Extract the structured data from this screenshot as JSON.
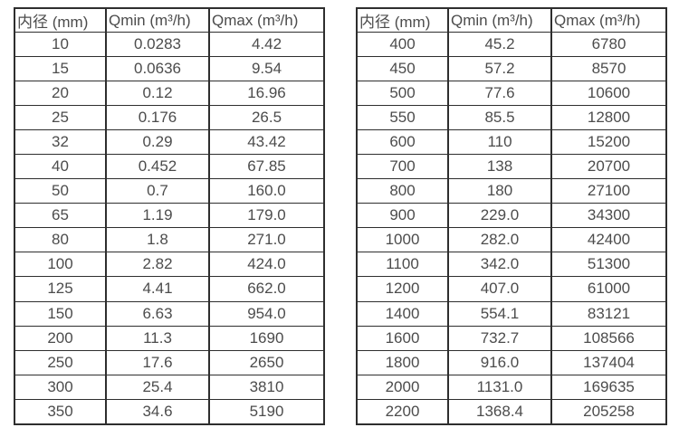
{
  "page": {
    "background": "#ffffff",
    "text_color": "#4c4c4c",
    "border_color": "#2e2e2e"
  },
  "chart_data": [
    {
      "type": "table",
      "columns": [
        "内径 (mm)",
        "Qmin (m³/h)",
        "Qmax (m³/h)"
      ],
      "rows": [
        [
          "10",
          "0.0283",
          "4.42"
        ],
        [
          "15",
          "0.0636",
          "9.54"
        ],
        [
          "20",
          "0.12",
          "16.96"
        ],
        [
          "25",
          "0.176",
          "26.5"
        ],
        [
          "32",
          "0.29",
          "43.42"
        ],
        [
          "40",
          "0.452",
          "67.85"
        ],
        [
          "50",
          "0.7",
          "160.0"
        ],
        [
          "65",
          "1.19",
          "179.0"
        ],
        [
          "80",
          "1.8",
          "271.0"
        ],
        [
          "100",
          "2.82",
          "424.0"
        ],
        [
          "125",
          "4.41",
          "662.0"
        ],
        [
          "150",
          "6.63",
          "954.0"
        ],
        [
          "200",
          "11.3",
          "1690"
        ],
        [
          "250",
          "17.6",
          "2650"
        ],
        [
          "300",
          "25.4",
          "3810"
        ],
        [
          "350",
          "34.6",
          "5190"
        ]
      ]
    },
    {
      "type": "table",
      "columns": [
        "内径 (mm)",
        "Qmin (m³/h)",
        "Qmax (m³/h)"
      ],
      "rows": [
        [
          "400",
          "45.2",
          "6780"
        ],
        [
          "450",
          "57.2",
          "8570"
        ],
        [
          "500",
          "77.6",
          "10600"
        ],
        [
          "550",
          "85.5",
          "12800"
        ],
        [
          "600",
          "110",
          "15200"
        ],
        [
          "700",
          "138",
          "20700"
        ],
        [
          "800",
          "180",
          "27100"
        ],
        [
          "900",
          "229.0",
          "34300"
        ],
        [
          "1000",
          "282.0",
          "42400"
        ],
        [
          "1100",
          "342.0",
          "51300"
        ],
        [
          "1200",
          "407.0",
          "61000"
        ],
        [
          "1400",
          "554.1",
          "83121"
        ],
        [
          "1600",
          "732.7",
          "108566"
        ],
        [
          "1800",
          "916.0",
          "137404"
        ],
        [
          "2000",
          "1131.0",
          "169635"
        ],
        [
          "2200",
          "1368.4",
          "205258"
        ]
      ]
    }
  ]
}
